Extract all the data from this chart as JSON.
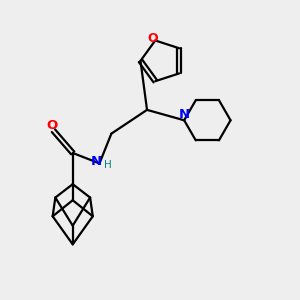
{
  "bg_color": "#eeeeee",
  "bond_color": "#000000",
  "o_color": "#ff0000",
  "n_color": "#0000ff",
  "h_color": "#008080",
  "line_width": 1.6,
  "figsize": [
    3.0,
    3.0
  ],
  "dpi": 100,
  "xlim": [
    0,
    10
  ],
  "ylim": [
    0,
    10
  ]
}
